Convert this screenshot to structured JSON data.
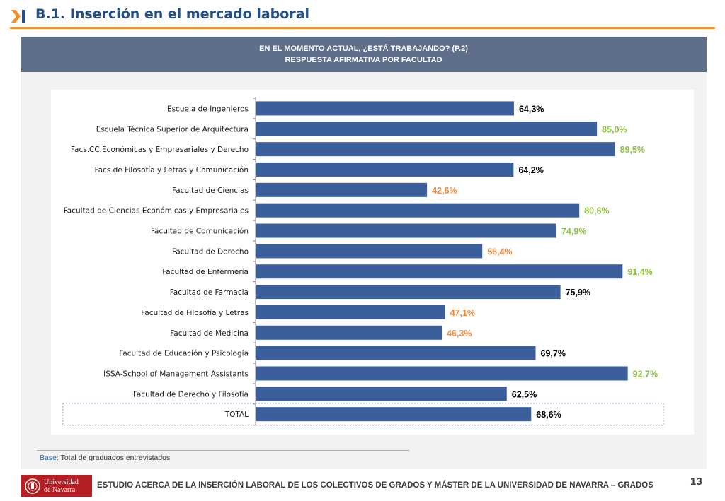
{
  "slide": {
    "title": "B.1. Inserción en el mercado laboral",
    "page_number": "13"
  },
  "chart_header": {
    "line1": "EN EL MOMENTO ACTUAL, ¿ESTÁ TRABAJANDO? (P.2)",
    "line2": "RESPUESTA AFIRMATIVA POR FACULTAD"
  },
  "colors": {
    "bar": "#3a5f9b",
    "label_black": "#000000",
    "label_orange": "#ee8a3c",
    "label_green": "#8fc142",
    "accent_orange": "#f0902a",
    "brand_red": "#b51f24"
  },
  "chart_data": {
    "type": "bar",
    "orientation": "horizontal",
    "categories": [
      "Escuela de Ingenieros",
      "Escuela Técnica Superior de Arquitectura",
      "Facs.CC.Económicas y Empresariales y Derecho",
      "Facs.de Filosofía y Letras y Comunicación",
      "Facultad de Ciencias",
      "Facultad de Ciencias Económicas y Empresariales",
      "Facultad de Comunicación",
      "Facultad de Derecho",
      "Facultad de Enfermería",
      "Facultad de Farmacia",
      "Facultad de Filosofía y Letras",
      "Facultad de Medicina",
      "Facultad de Educación y Psicología",
      "ISSA-School of Management Assistants",
      "Facultad de Derecho y Filosofía",
      "TOTAL"
    ],
    "values": [
      64.3,
      85.0,
      89.5,
      64.2,
      42.6,
      80.6,
      74.9,
      56.4,
      91.4,
      75.9,
      47.1,
      46.3,
      69.7,
      92.7,
      62.5,
      68.6
    ],
    "value_labels": [
      "64,3%",
      "85,0%",
      "89,5%",
      "64,2%",
      "42,6%",
      "80,6%",
      "74,9%",
      "56,4%",
      "91,4%",
      "75,9%",
      "47,1%",
      "46,3%",
      "69,7%",
      "92,7%",
      "62,5%",
      "68,6%"
    ],
    "label_colors": [
      "black",
      "green",
      "green",
      "black",
      "orange",
      "green",
      "green",
      "orange",
      "green",
      "black",
      "orange",
      "orange",
      "black",
      "green",
      "black",
      "black"
    ],
    "xlim": [
      0,
      100
    ],
    "highlighted_category": "TOTAL",
    "grid": false
  },
  "footer": {
    "base_label": "Base",
    "base_text": ": Total de graduados entrevistados",
    "logo_line1": "Universidad",
    "logo_line2": "de Navarra",
    "study_title": "ESTUDIO ACERCA DE LA INSERCIÓN LABORAL DE LOS COLECTIVOS DE GRADOS Y MÁSTER DE LA UNIVERSIDAD DE NAVARRA – GRADOS"
  }
}
